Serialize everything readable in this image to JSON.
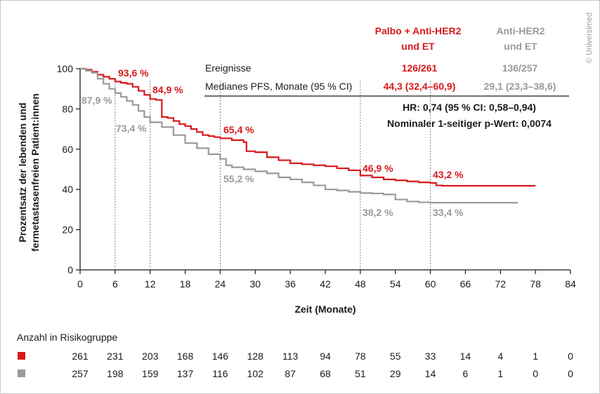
{
  "watermark": "© Universimed",
  "legend": {
    "red_name_line1": "Palbo + Anti-HER2",
    "red_name_line2": "und ET",
    "gray_name_line1": "Anti-HER2",
    "gray_name_line2": "und ET"
  },
  "stats_table": {
    "events_label": "Ereignisse",
    "events_red": "126/261",
    "events_gray": "136/257",
    "median_label": "Medianes PFS, Monate (95 % CI)",
    "median_red": "44,3 (32,4–60,9)",
    "median_gray": "29,1 (23,3–38,6)",
    "hr_text": "HR: 0,74 (95 % CI: 0,58–0,94)",
    "pvalue_text": "Nominaler 1-seitiger p-Wert: 0,0074"
  },
  "annotations": {
    "red": [
      "93,6 %",
      "84,9 %",
      "65,4 %",
      "46,9 %",
      "43,2 %"
    ],
    "gray": [
      "87,9 %",
      "73,4 %",
      "55,2 %",
      "38,2 %",
      "33,4 %"
    ]
  },
  "risk_table": {
    "title": "Anzahl in Risikogruppe",
    "red": [
      "261",
      "231",
      "203",
      "168",
      "146",
      "128",
      "113",
      "94",
      "78",
      "55",
      "33",
      "14",
      "4",
      "1",
      "0"
    ],
    "gray": [
      "257",
      "198",
      "159",
      "137",
      "116",
      "102",
      "87",
      "68",
      "51",
      "29",
      "14",
      "6",
      "1",
      "0",
      "0"
    ]
  },
  "colors": {
    "red": "#d7191c",
    "gray": "#9a9a9a",
    "text": "#1a1a1a"
  },
  "chart_data": {
    "type": "line",
    "xlabel": "Zeit (Monate)",
    "ylabel_line1": "Prozentsatz der lebenden und",
    "ylabel_line2": "fermetastasenfreien Patient:innen",
    "xlim": [
      0,
      84
    ],
    "ylim": [
      0,
      100
    ],
    "xticks": [
      0,
      6,
      12,
      18,
      24,
      30,
      36,
      42,
      48,
      54,
      60,
      66,
      72,
      78,
      84
    ],
    "yticks": [
      0,
      20,
      40,
      60,
      80,
      100
    ],
    "reference_months": [
      6,
      12,
      24,
      48,
      60
    ],
    "series": [
      {
        "name": "Palbo + Anti-HER2 und ET",
        "color": "#d7191c",
        "x": [
          0,
          1,
          2,
          3,
          4,
          5,
          6,
          7,
          8,
          9,
          10,
          11,
          12,
          13,
          14,
          15,
          16,
          17,
          18,
          19,
          20,
          21,
          22,
          23,
          24,
          26,
          28,
          28.5,
          30,
          32,
          34,
          36,
          38,
          40,
          42,
          44,
          46,
          48,
          50,
          52,
          54,
          56,
          58,
          60,
          61,
          62,
          66,
          70,
          78
        ],
        "y": [
          100,
          99.5,
          98.5,
          97,
          96,
          95,
          93.6,
          93,
          92.5,
          91,
          89,
          87,
          84.9,
          84.5,
          76,
          75.5,
          74,
          72.5,
          71.5,
          70,
          68.5,
          67,
          66.5,
          66,
          65.4,
          64.5,
          63.5,
          59,
          58.5,
          56,
          54.5,
          53,
          52.5,
          52,
          51.5,
          50.5,
          49.5,
          46.9,
          46,
          45,
          44.5,
          44,
          43.5,
          43.2,
          42,
          41.8,
          41.8,
          41.8,
          41.8
        ]
      },
      {
        "name": "Anti-HER2 und ET",
        "color": "#9a9a9a",
        "x": [
          0,
          1,
          2,
          3,
          4,
          5,
          6,
          7,
          8,
          9,
          10,
          11,
          12,
          14,
          16,
          18,
          20,
          22,
          24,
          25,
          26,
          28,
          30,
          32,
          34,
          36,
          38,
          40,
          42,
          44,
          46,
          48,
          50,
          52,
          54,
          56,
          58,
          60,
          62,
          66,
          70,
          75
        ],
        "y": [
          100,
          99,
          98,
          95,
          92.5,
          90,
          87.9,
          86,
          84,
          82,
          79,
          76,
          73.4,
          71,
          67,
          63,
          60.5,
          57.5,
          55.2,
          52,
          51,
          50,
          49,
          48,
          46,
          45,
          43.5,
          42,
          40,
          39.5,
          38.8,
          38.2,
          38,
          37.5,
          35,
          34,
          33.6,
          33.4,
          33.4,
          33.4,
          33.4,
          33.4
        ]
      }
    ]
  }
}
